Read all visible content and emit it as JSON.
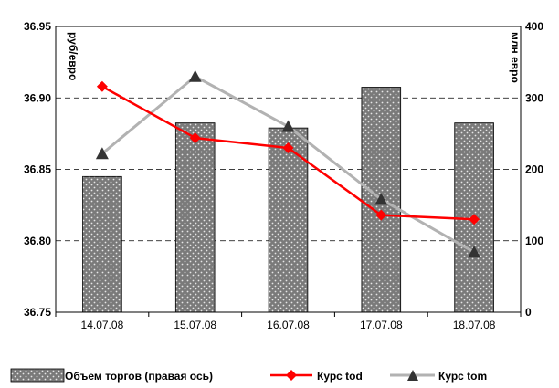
{
  "chart_data": {
    "type": "bar",
    "categories": [
      "14.07.08",
      "15.07.08",
      "16.07.08",
      "17.07.08",
      "18.07.08"
    ],
    "series": [
      {
        "name": "Объем торгов (правая ось)",
        "type": "bar",
        "axis": "right",
        "values": [
          190,
          265,
          258,
          315,
          265
        ],
        "color": "#7f7f7f"
      },
      {
        "name": "Курс tod",
        "type": "line",
        "axis": "left",
        "marker": "diamond",
        "values": [
          36.908,
          36.872,
          36.865,
          36.818,
          36.815
        ],
        "color": "#ff0000"
      },
      {
        "name": "Курс tom",
        "type": "line",
        "axis": "left",
        "marker": "triangle",
        "values": [
          36.861,
          36.915,
          36.88,
          36.829,
          36.792
        ],
        "color": "#b2b2b2"
      }
    ],
    "left_axis": {
      "label": "руб/евро",
      "ylim": [
        36.75,
        36.95
      ],
      "ticks": [
        "36.75",
        "36.80",
        "36.85",
        "36.90",
        "36.95"
      ]
    },
    "right_axis": {
      "label": "млн евро",
      "ylim": [
        0,
        400
      ],
      "ticks": [
        "0",
        "100",
        "200",
        "300",
        "400"
      ]
    },
    "grid": "horizontal dashed",
    "legend_position": "bottom"
  }
}
